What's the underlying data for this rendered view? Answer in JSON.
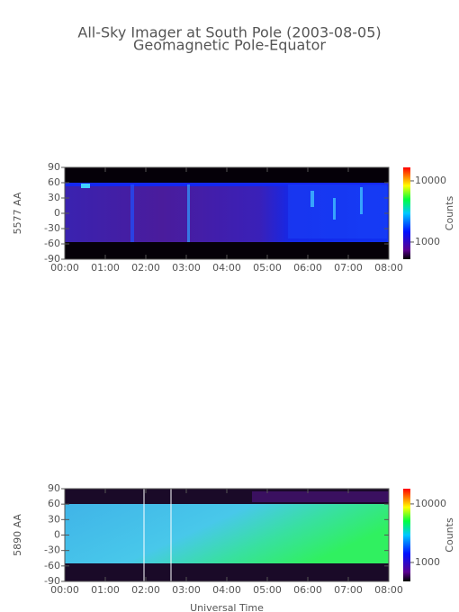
{
  "title": "All-Sky Imager at South Pole (2003-08-05)",
  "subtitle": "Geomagnetic Pole-Equator",
  "chart_data": [
    {
      "type": "heatmap",
      "ylabel": "5577 AA",
      "ylim": [
        -90,
        90
      ],
      "yticks": [
        90,
        60,
        30,
        0,
        -30,
        -60,
        -90
      ],
      "xlim": [
        0,
        8
      ],
      "xticks": [
        {
          "value": 0,
          "label": "00:00"
        },
        {
          "value": 1,
          "label": "01:00"
        },
        {
          "value": 2,
          "label": "02:00"
        },
        {
          "value": 3,
          "label": "03:00"
        },
        {
          "value": 4,
          "label": "04:00"
        },
        {
          "value": 5,
          "label": "05:00"
        },
        {
          "value": 6,
          "label": "06:00"
        },
        {
          "value": 7,
          "label": "07:00"
        },
        {
          "value": 8,
          "label": "08:00"
        }
      ],
      "colorbar_label": "Counts",
      "colorbar_log": true,
      "clim": [
        525,
        16600
      ],
      "cticks": [
        1000,
        10000
      ]
    },
    {
      "type": "heatmap",
      "ylabel": "5890 AA",
      "xlabel": "Universal Time",
      "ylim": [
        -90,
        90
      ],
      "yticks": [
        90,
        60,
        30,
        0,
        -30,
        -60,
        -90
      ],
      "xlim": [
        0,
        8
      ],
      "xticks": [
        {
          "value": 0,
          "label": "00:00"
        },
        {
          "value": 1,
          "label": "01:00"
        },
        {
          "value": 2,
          "label": "02:00"
        },
        {
          "value": 3,
          "label": "03:00"
        },
        {
          "value": 4,
          "label": "04:00"
        },
        {
          "value": 5,
          "label": "05:00"
        },
        {
          "value": 6,
          "label": "06:00"
        },
        {
          "value": 7,
          "label": "07:00"
        },
        {
          "value": 8,
          "label": "08:00"
        }
      ],
      "colorbar_label": "Counts",
      "colorbar_log": true,
      "clim": [
        475,
        18200
      ],
      "cticks": [
        1000,
        10000
      ]
    }
  ]
}
